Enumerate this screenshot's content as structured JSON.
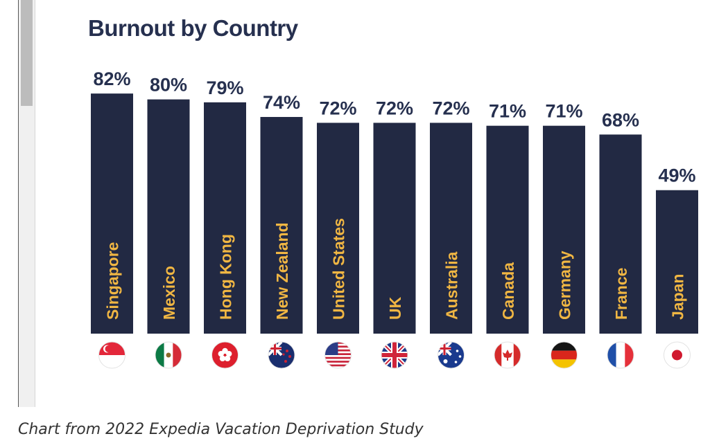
{
  "chart_data": {
    "type": "bar",
    "title": "Burnout by Country",
    "categories": [
      "Singapore",
      "Mexico",
      "Hong Kong",
      "New Zealand",
      "United States",
      "UK",
      "Australia",
      "Canada",
      "Germany",
      "France",
      "Japan"
    ],
    "values": [
      82,
      80,
      79,
      74,
      72,
      72,
      72,
      71,
      71,
      68,
      49
    ],
    "value_labels": [
      "82%",
      "80%",
      "79%",
      "74%",
      "72%",
      "72%",
      "72%",
      "71%",
      "71%",
      "68%",
      "49%"
    ],
    "flags": [
      "singapore-flag-icon",
      "mexico-flag-icon",
      "hong-kong-flag-icon",
      "new-zealand-flag-icon",
      "united-states-flag-icon",
      "uk-flag-icon",
      "australia-flag-icon",
      "canada-flag-icon",
      "germany-flag-icon",
      "france-flag-icon",
      "japan-flag-icon"
    ],
    "xlabel": "",
    "ylabel": "",
    "ylim": [
      0,
      100
    ],
    "grid": false,
    "bar_color": "#222943",
    "label_color": "#f0b643",
    "value_color": "#26304f"
  },
  "caption": "Chart from 2022 Expedia Vacation Deprivation Study"
}
